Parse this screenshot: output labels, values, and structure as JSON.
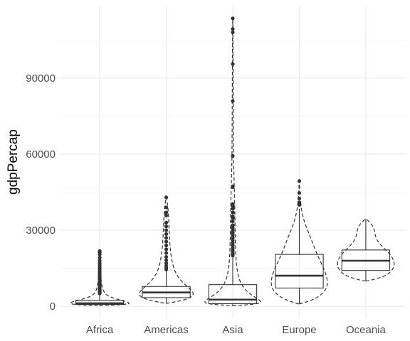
{
  "chart_data": {
    "type": "box",
    "xlabel": "",
    "ylabel": "gdpPercap",
    "categories": [
      "Africa",
      "Americas",
      "Asia",
      "Europe",
      "Oceania"
    ],
    "yticks": [
      0,
      30000,
      60000,
      90000
    ],
    "ytick_labels": [
      "0",
      "30000",
      "60000",
      "90000"
    ],
    "ylim": [
      -4700,
      118500
    ],
    "grid": true,
    "boxes": [
      {
        "category": "Africa",
        "min": 241,
        "q1": 761,
        "median": 1192,
        "q3": 2377,
        "whisker_high": 4800,
        "outliers": [
          5100,
          5500,
          5900,
          6200,
          6600,
          7000,
          7400,
          7800,
          8200,
          8600,
          9000,
          9500,
          10000,
          10500,
          11000,
          11500,
          12000,
          12500,
          13200,
          13800,
          14500,
          15300,
          16200,
          17000,
          18000,
          19200,
          20500,
          21300,
          21800
        ]
      },
      {
        "category": "Americas",
        "min": 1202,
        "q1": 3428,
        "median": 5466,
        "q3": 7830,
        "whisker_high": 14000,
        "outliers": [
          14500,
          15200,
          16000,
          17000,
          18200,
          19500,
          21000,
          22500,
          24000,
          25500,
          27000,
          28500,
          30000,
          31500,
          33000,
          35800,
          37000,
          39000,
          42950
        ]
      },
      {
        "category": "Asia",
        "min": 331,
        "q1": 1057,
        "median": 2647,
        "q3": 8549,
        "whisker_high": 19500,
        "outliers": [
          20000,
          20600,
          21200,
          22000,
          23000,
          24000,
          25000,
          26000,
          27000,
          28000,
          29000,
          30000,
          31000,
          32000,
          33500,
          34800,
          35500,
          37000,
          38500,
          39500,
          40300,
          47000,
          47300,
          59300,
          80900,
          95500,
          108000,
          109300,
          113500
        ]
      },
      {
        "category": "Europe",
        "min": 974,
        "q1": 7213,
        "median": 12081,
        "q3": 20461,
        "whisker_high": 38500,
        "outliers": [
          40000,
          41000,
          42500,
          44700,
          49400
        ]
      },
      {
        "category": "Oceania",
        "min": 10040,
        "q1": 14142,
        "median": 17983,
        "q3": 22214,
        "whisker_high": 34435,
        "outliers": []
      }
    ],
    "violins": [
      {
        "category": "Africa",
        "y": [
          241,
          800,
          1500,
          2500,
          4000,
          6000,
          10000,
          15000,
          21951
        ],
        "half_width": [
          0.04,
          0.43,
          0.45,
          0.3,
          0.12,
          0.05,
          0.02,
          0.01,
          0.003
        ]
      },
      {
        "category": "Americas",
        "y": [
          1202,
          2500,
          4000,
          5500,
          7500,
          10000,
          14000,
          20000,
          26000,
          32000,
          38000,
          42952
        ],
        "half_width": [
          0.02,
          0.28,
          0.4,
          0.41,
          0.33,
          0.22,
          0.12,
          0.07,
          0.05,
          0.04,
          0.03,
          0.003
        ]
      },
      {
        "category": "Asia",
        "y": [
          331,
          1000,
          2000,
          3500,
          6000,
          10000,
          15000,
          20000,
          30000,
          40000,
          50000,
          60000,
          113523
        ],
        "half_width": [
          0.05,
          0.4,
          0.43,
          0.34,
          0.2,
          0.1,
          0.06,
          0.045,
          0.035,
          0.03,
          0.02,
          0.01,
          0.003
        ]
      },
      {
        "category": "Europe",
        "y": [
          974,
          3000,
          6000,
          9000,
          13000,
          17000,
          21000,
          25000,
          29000,
          33000,
          37000,
          40000,
          43000,
          46000,
          49357
        ],
        "half_width": [
          0.02,
          0.25,
          0.39,
          0.43,
          0.4,
          0.33,
          0.26,
          0.2,
          0.14,
          0.08,
          0.04,
          0.025,
          0.012,
          0.006,
          0.002
        ]
      },
      {
        "category": "Oceania",
        "y": [
          10040,
          12000,
          14000,
          16000,
          18000,
          20000,
          22000,
          24000,
          26000,
          28000,
          30000,
          32000,
          34435
        ],
        "half_width": [
          0.05,
          0.3,
          0.39,
          0.43,
          0.42,
          0.38,
          0.31,
          0.23,
          0.17,
          0.14,
          0.13,
          0.1,
          0.01
        ]
      }
    ]
  }
}
